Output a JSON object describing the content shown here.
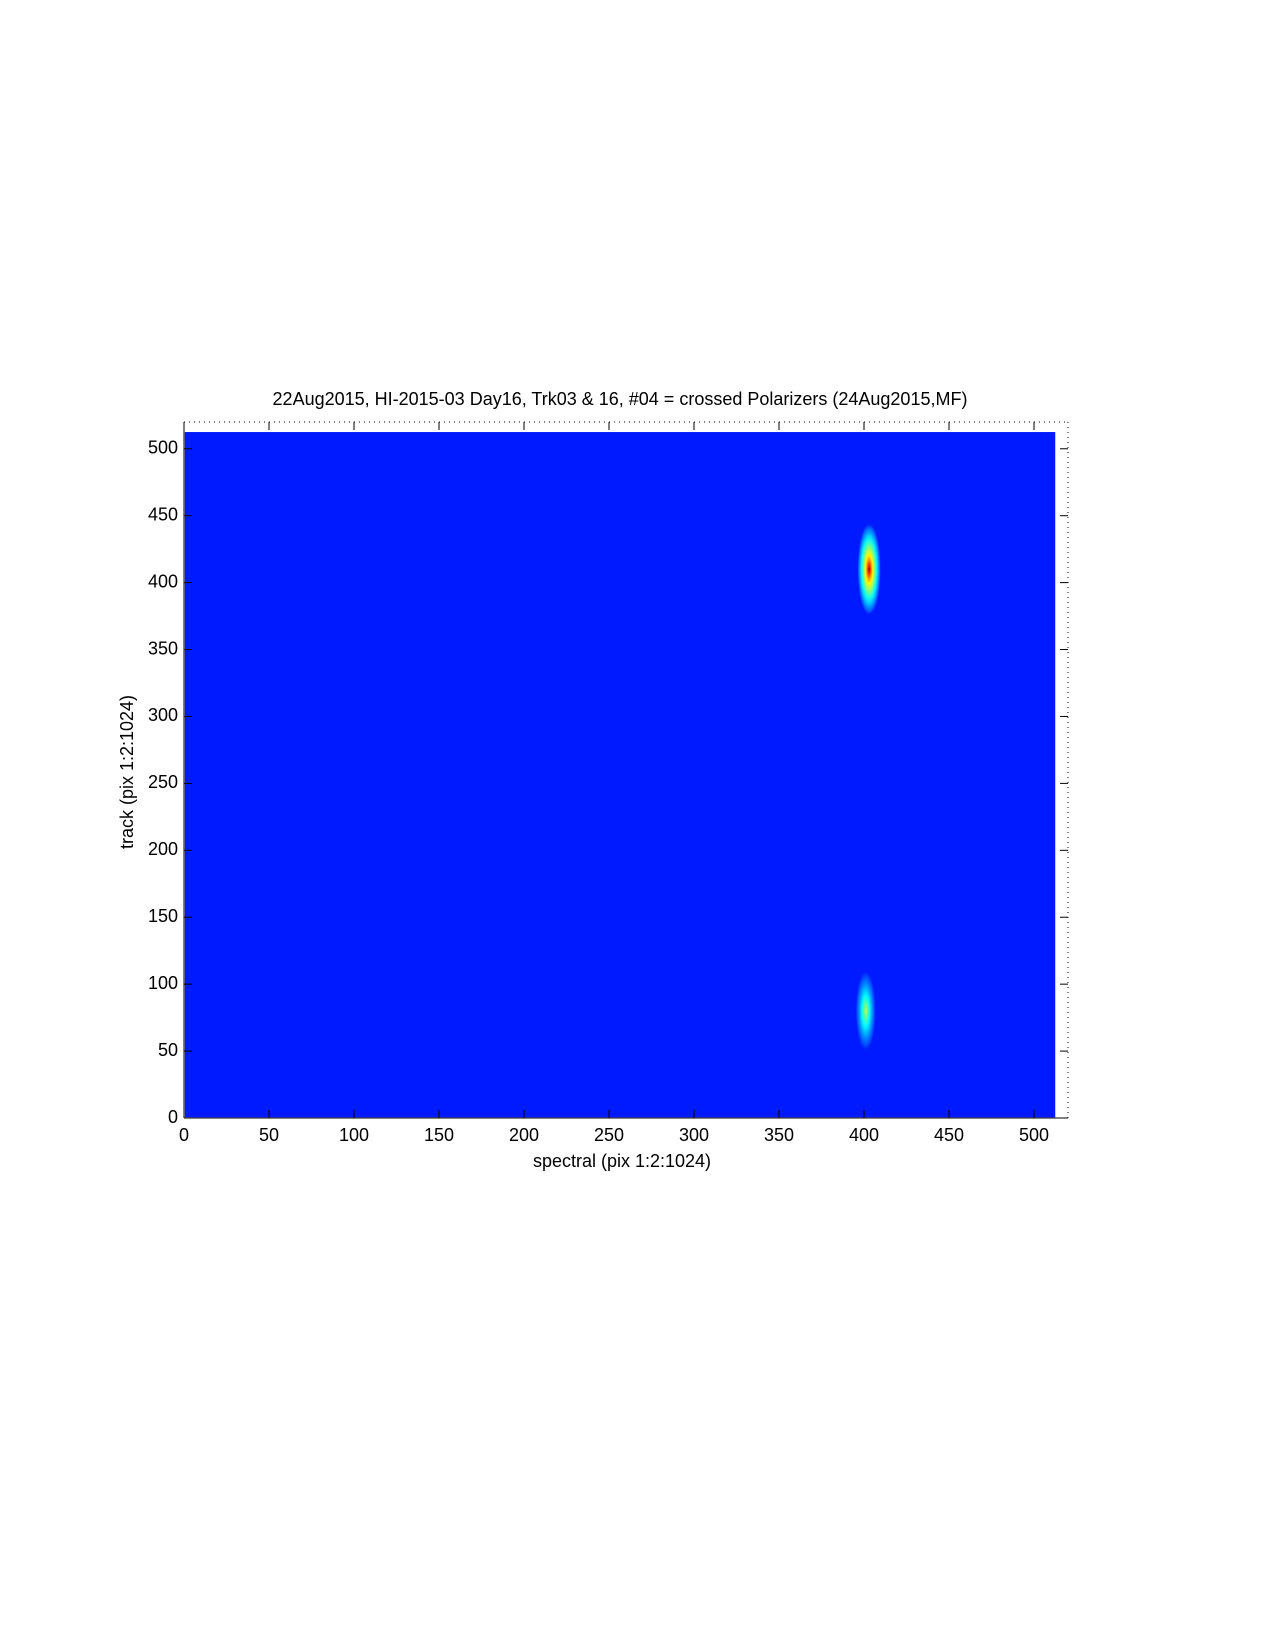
{
  "chart_data": {
    "type": "image",
    "title": "22Aug2015,  HI-2015-03  Day16,  Trk03 & 16,  #04 = crossed Polarizers (24Aug2015,MF)",
    "xlabel": "spectral (pix 1:2:1024)",
    "ylabel": "track (pix 1:2:1024)",
    "xlim": [
      0,
      520
    ],
    "ylim": [
      0,
      520
    ],
    "xticks": [
      0,
      50,
      100,
      150,
      200,
      250,
      300,
      350,
      400,
      450,
      500
    ],
    "yticks": [
      0,
      50,
      100,
      150,
      200,
      250,
      300,
      350,
      400,
      450,
      500
    ],
    "image_extent": [
      0.5,
      512.5
    ],
    "colormap": "jet",
    "background": 0.15,
    "spots": {
      "x": [
        403,
        401
      ],
      "y": [
        410,
        80
      ],
      "width": [
        14,
        12
      ],
      "height": [
        70,
        60
      ],
      "peak": [
        1.0,
        0.6
      ]
    }
  }
}
